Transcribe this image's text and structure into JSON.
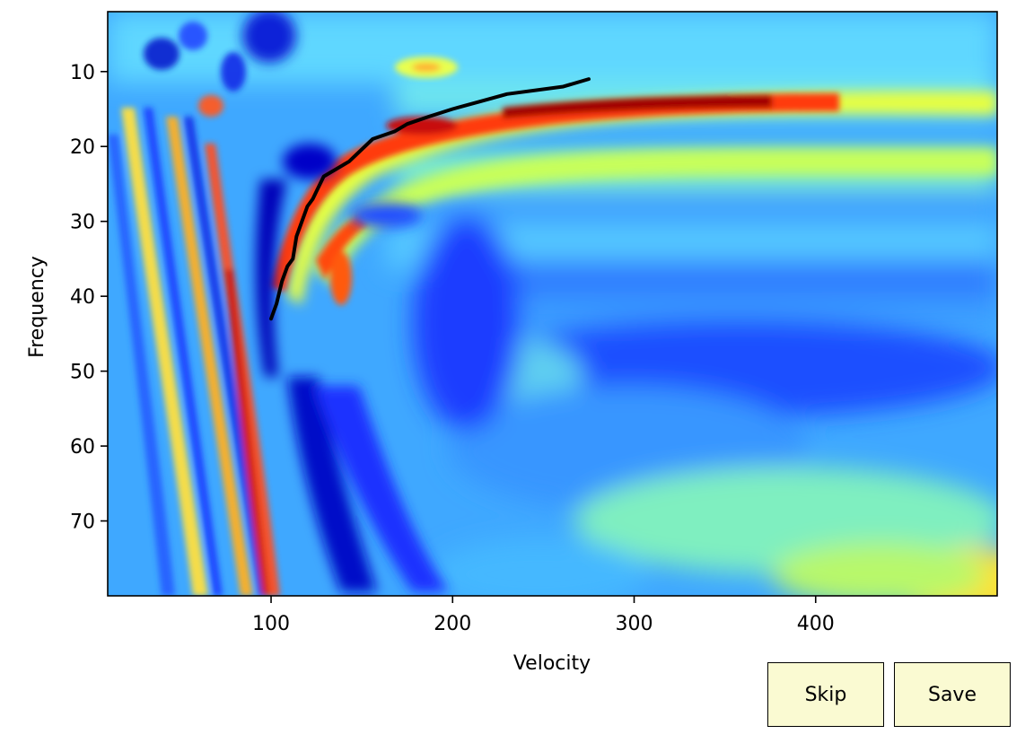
{
  "chart_data": {
    "type": "heatmap",
    "title": "",
    "xlabel": "Velocity",
    "ylabel": "Frequency",
    "xlim": [
      10,
      500
    ],
    "ylim": [
      2,
      80
    ],
    "y_inverted": true,
    "colormap": "jet",
    "grid": false,
    "xticks": [
      100,
      200,
      300,
      400
    ],
    "yticks": [
      10,
      20,
      30,
      40,
      50,
      60,
      70
    ],
    "picked_curve": {
      "name": "",
      "color": "#000000",
      "points": [
        {
          "x": 100,
          "y": 43
        },
        {
          "x": 103,
          "y": 41
        },
        {
          "x": 106,
          "y": 38
        },
        {
          "x": 109,
          "y": 36
        },
        {
          "x": 112,
          "y": 35
        },
        {
          "x": 114,
          "y": 32
        },
        {
          "x": 117,
          "y": 30
        },
        {
          "x": 120,
          "y": 28
        },
        {
          "x": 123,
          "y": 27
        },
        {
          "x": 125,
          "y": 26
        },
        {
          "x": 129,
          "y": 24
        },
        {
          "x": 143,
          "y": 22
        },
        {
          "x": 156,
          "y": 19
        },
        {
          "x": 168,
          "y": 18
        },
        {
          "x": 175,
          "y": 17
        },
        {
          "x": 187,
          "y": 16
        },
        {
          "x": 200,
          "y": 15
        },
        {
          "x": 215,
          "y": 14
        },
        {
          "x": 230,
          "y": 13
        },
        {
          "x": 261,
          "y": 12
        },
        {
          "x": 275,
          "y": 11
        }
      ]
    }
  },
  "buttons": {
    "skip_label": "Skip",
    "save_label": "Save"
  },
  "colors": {
    "button_face": "#fafad2",
    "curve": "#000000"
  }
}
